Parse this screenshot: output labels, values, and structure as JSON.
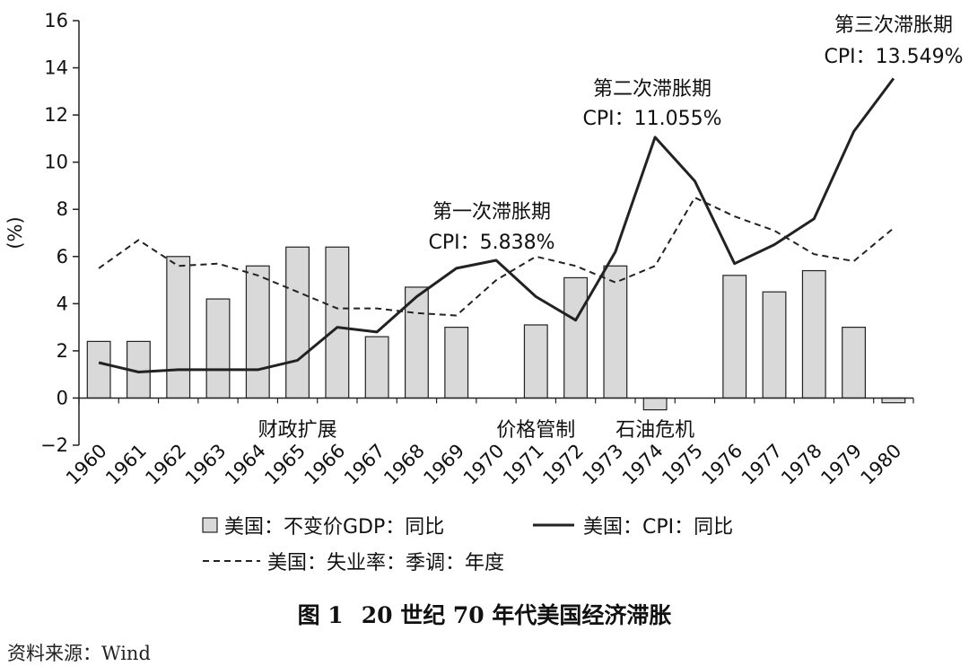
{
  "chart_data": {
    "type": "bar",
    "ylabel": "(%)",
    "ylim": [
      -2,
      16
    ],
    "yticks": [
      -2,
      0,
      2,
      4,
      6,
      8,
      10,
      12,
      14,
      16
    ],
    "categories": [
      "1960",
      "1961",
      "1962",
      "1963",
      "1964",
      "1965",
      "1966",
      "1967",
      "1968",
      "1969",
      "1970",
      "1971",
      "1972",
      "1973",
      "1974",
      "1975",
      "1976",
      "1977",
      "1978",
      "1979",
      "1980"
    ],
    "series": [
      {
        "name": "美国：不变价GDP：同比",
        "kind": "bar",
        "color": "#d9d9d9",
        "values": [
          2.4,
          2.4,
          6.0,
          4.2,
          5.6,
          6.4,
          6.4,
          2.6,
          4.7,
          3.0,
          null,
          3.1,
          5.1,
          5.6,
          -0.5,
          null,
          5.2,
          4.5,
          5.4,
          3.0,
          -0.2
        ]
      },
      {
        "name": "美国：CPI：同比",
        "kind": "line",
        "color": "#222222",
        "values": [
          1.5,
          1.1,
          1.2,
          1.2,
          1.2,
          1.6,
          3.0,
          2.8,
          4.3,
          5.5,
          5.838,
          4.3,
          3.3,
          6.2,
          11.055,
          9.2,
          5.7,
          6.5,
          7.6,
          11.3,
          13.549
        ]
      },
      {
        "name": "美国：失业率：季调：年度",
        "kind": "dashed",
        "color": "#222222",
        "values": [
          5.5,
          6.7,
          5.6,
          5.7,
          5.2,
          4.5,
          3.8,
          3.8,
          3.6,
          3.5,
          5.0,
          6.0,
          5.6,
          4.9,
          5.6,
          8.5,
          7.7,
          7.1,
          6.1,
          5.8,
          7.2
        ]
      }
    ],
    "annotations": [
      {
        "title": "第一次滞胀期",
        "cpi": "CPI：5.838%",
        "category": "1970"
      },
      {
        "title": "第二次滞胀期",
        "cpi": "CPI：11.055%",
        "category": "1974"
      },
      {
        "title": "第三次滞胀期",
        "cpi": "CPI：13.549%",
        "category": "1980"
      }
    ],
    "policy_labels": [
      {
        "text": "财政扩展",
        "category": "1965"
      },
      {
        "text": "价格管制",
        "category": "1971"
      },
      {
        "text": "石油危机",
        "category": "1974"
      }
    ]
  },
  "caption": {
    "prefix": "图 1",
    "title": "20 世纪 70 年代美国经济滞胀"
  },
  "source": "资料来源：Wind"
}
